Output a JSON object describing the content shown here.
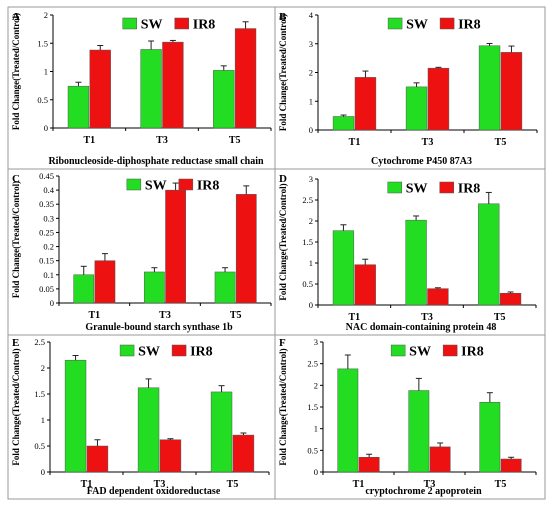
{
  "series_colors": {
    "SW": "#22dd22",
    "IR8": "#ee1111"
  },
  "chart_data": [
    {
      "panel": "A",
      "type": "bar",
      "categories": [
        "T1",
        "T3",
        "T5"
      ],
      "series": [
        {
          "name": "SW",
          "values": [
            0.74,
            1.39,
            1.02
          ],
          "errors": [
            0.07,
            0.15,
            0.08
          ]
        },
        {
          "name": "IR8",
          "values": [
            1.38,
            1.52,
            1.76
          ],
          "errors": [
            0.08,
            0.03,
            0.12
          ]
        }
      ],
      "ylabel": "Fold Change(Treated/Control)",
      "xlabel": "Ribonucleoside-diphosphate reductase small chain",
      "ylim": [
        0,
        2
      ],
      "yticks": [
        0,
        0.5,
        1,
        1.5,
        2
      ],
      "ytick_labels": [
        "0",
        "0.5",
        "1",
        "1.5",
        "2"
      ],
      "legend": "top-center",
      "grid": false
    },
    {
      "panel": "B",
      "type": "bar",
      "categories": [
        "T1",
        "T3",
        "T5"
      ],
      "series": [
        {
          "name": "SW",
          "values": [
            0.47,
            1.5,
            2.93
          ],
          "errors": [
            0.05,
            0.14,
            0.08
          ]
        },
        {
          "name": "IR8",
          "values": [
            1.83,
            2.15,
            2.7
          ],
          "errors": [
            0.22,
            0.03,
            0.22
          ]
        }
      ],
      "ylabel": "Fold Change(Treated/Control)",
      "xlabel": "Cytochrome P450 87A3",
      "ylim": [
        0,
        4
      ],
      "yticks": [
        0,
        1,
        2,
        3,
        4
      ],
      "ytick_labels": [
        "0",
        "1",
        "2",
        "3",
        "4"
      ],
      "legend": "top-center",
      "grid": false
    },
    {
      "panel": "C",
      "type": "bar",
      "categories": [
        "T1",
        "T3",
        "T5"
      ],
      "series": [
        {
          "name": "SW",
          "values": [
            0.1,
            0.11,
            0.11
          ],
          "errors": [
            0.03,
            0.015,
            0.015
          ]
        },
        {
          "name": "IR8",
          "values": [
            0.15,
            0.4,
            0.385
          ],
          "errors": [
            0.025,
            0.025,
            0.03
          ]
        }
      ],
      "ylabel": "Fold Change(Treated/Control)",
      "xlabel": "Granule-bound starch synthase 1b",
      "ylim": [
        0,
        0.45
      ],
      "yticks": [
        0,
        0.05,
        0.1,
        0.15,
        0.2,
        0.25,
        0.3,
        0.35,
        0.4,
        0.45
      ],
      "ytick_labels": [
        "0",
        "0.05",
        "0.1",
        "0.15",
        "0.2",
        "0.25",
        "0.3",
        "0.35",
        "0.4",
        "0.45"
      ],
      "legend": "top-center",
      "grid": false
    },
    {
      "panel": "D",
      "type": "bar",
      "categories": [
        "T1",
        "T3",
        "T5"
      ],
      "series": [
        {
          "name": "SW",
          "values": [
            1.77,
            2.02,
            2.41
          ],
          "errors": [
            0.14,
            0.1,
            0.27
          ]
        },
        {
          "name": "IR8",
          "values": [
            0.96,
            0.39,
            0.28
          ],
          "errors": [
            0.13,
            0.02,
            0.03
          ]
        }
      ],
      "ylabel": "Fold Change(Treated/Control)",
      "xlabel": "NAC domain-containing protein 48",
      "ylim": [
        0,
        3
      ],
      "yticks": [
        0,
        0.5,
        1,
        1.5,
        2,
        2.5,
        3
      ],
      "ytick_labels": [
        "0",
        "0.5",
        "1",
        "1.5",
        "2",
        "2.5",
        "3"
      ],
      "legend": "top-center",
      "grid": false
    },
    {
      "panel": "E",
      "type": "bar",
      "categories": [
        "T1",
        "T3",
        "T5"
      ],
      "series": [
        {
          "name": "SW",
          "values": [
            2.15,
            1.62,
            1.54
          ],
          "errors": [
            0.09,
            0.17,
            0.12
          ]
        },
        {
          "name": "IR8",
          "values": [
            0.5,
            0.62,
            0.71
          ],
          "errors": [
            0.12,
            0.02,
            0.04
          ]
        }
      ],
      "ylabel": "Fold Change(Treated/Control)",
      "xlabel": "FAD dependent oxidoreductase",
      "ylim": [
        0,
        2.5
      ],
      "yticks": [
        0,
        0.5,
        1,
        1.5,
        2,
        2.5
      ],
      "ytick_labels": [
        "0",
        "0.5",
        "1",
        "1.5",
        "2",
        "2.5"
      ],
      "legend": "top-center",
      "grid": false
    },
    {
      "panel": "F",
      "type": "bar",
      "categories": [
        "T1",
        "T3",
        "T5"
      ],
      "series": [
        {
          "name": "SW",
          "values": [
            2.38,
            1.88,
            1.61
          ],
          "errors": [
            0.32,
            0.28,
            0.22
          ]
        },
        {
          "name": "IR8",
          "values": [
            0.34,
            0.58,
            0.3
          ],
          "errors": [
            0.07,
            0.09,
            0.04
          ]
        }
      ],
      "ylabel": "Fold Change(Treated/Control)",
      "xlabel": "cryptochrome 2 apoprotein",
      "ylim": [
        0,
        3
      ],
      "yticks": [
        0,
        0.5,
        1,
        1.5,
        2,
        2.5,
        3
      ],
      "ytick_labels": [
        "0",
        "0.5",
        "1",
        "1.5",
        "2",
        "2.5",
        "3"
      ],
      "legend": "top-center",
      "grid": false
    }
  ]
}
